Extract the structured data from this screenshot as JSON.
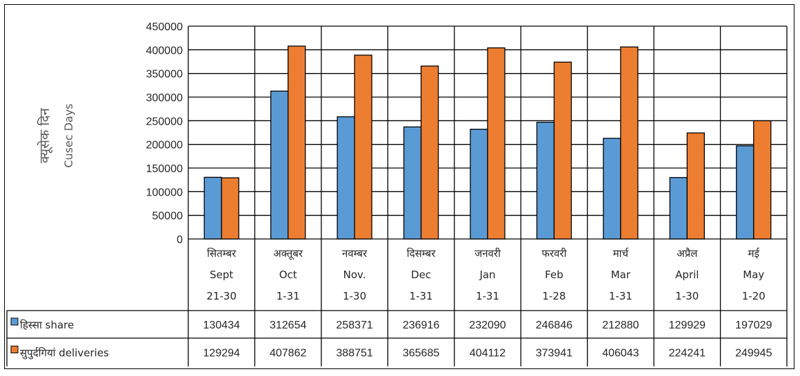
{
  "chart_data": {
    "type": "bar",
    "ylabel_hindi": "क्यूसेक दिन",
    "ylabel": "Cusec Days",
    "ylim": [
      0,
      450000
    ],
    "yticks": [
      "0",
      "50000",
      "100000",
      "150000",
      "200000",
      "250000",
      "300000",
      "350000",
      "400000",
      "450000"
    ],
    "grid": true,
    "legend": "left of data table rows",
    "categories": [
      {
        "hindi": "सितम्बर",
        "english": "Sept",
        "range": "21-30"
      },
      {
        "hindi": "अक्तूबर",
        "english": "Oct",
        "range": "1-31"
      },
      {
        "hindi": "नवम्बर",
        "english": "Nov.",
        "range": "1-30"
      },
      {
        "hindi": "दिसम्बर",
        "english": "Dec",
        "range": "1-31"
      },
      {
        "hindi": "जनवरी",
        "english": "Jan",
        "range": "1-31"
      },
      {
        "hindi": "फरवरी",
        "english": "Feb",
        "range": "1-28"
      },
      {
        "hindi": "मार्च",
        "english": "Mar",
        "range": "1-31"
      },
      {
        "hindi": "अप्रैल",
        "english": "April",
        "range": "1-30"
      },
      {
        "hindi": "मई",
        "english": "May",
        "range": "1-20"
      }
    ],
    "series": [
      {
        "name": "हिस्सा share",
        "color": "#5B9BD5",
        "values": [
          130434,
          312654,
          258371,
          236916,
          232090,
          246846,
          212880,
          129929,
          197029
        ]
      },
      {
        "name": "सुपुर्दगियां deliveries",
        "color": "#ED7D31",
        "values": [
          129294,
          407862,
          388751,
          365685,
          404112,
          373941,
          406043,
          224241,
          249945
        ]
      }
    ]
  }
}
